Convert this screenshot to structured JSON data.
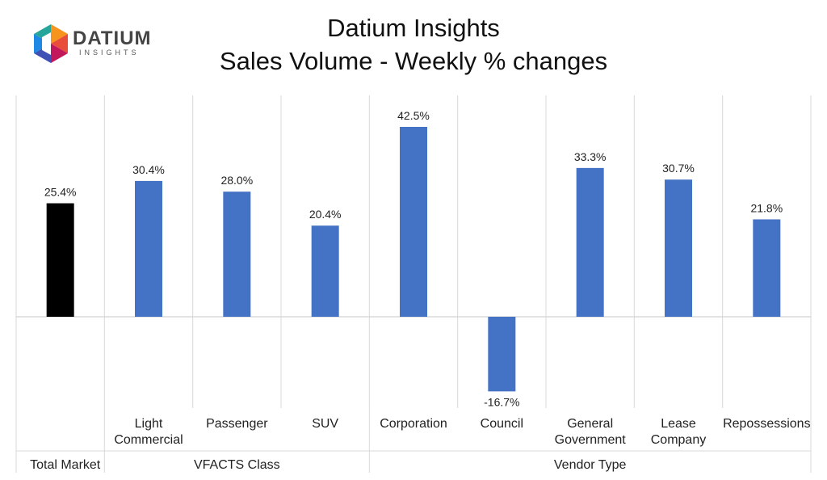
{
  "logo": {
    "name": "DATIUM",
    "tagline": "INSIGHTS"
  },
  "chart_data": {
    "type": "bar",
    "title": "Datium Insights",
    "subtitle": "Sales Volume - Weekly % changes",
    "categories": [
      "Total Market",
      "Light\nCommercial",
      "Passenger",
      "SUV",
      "Corporation",
      "Council",
      "General\nGovernment",
      "Lease\nCompany",
      "Repossessions"
    ],
    "groups": [
      {
        "label": "",
        "span": [
          0,
          0
        ]
      },
      {
        "label": "VFACTS Class",
        "span": [
          1,
          3
        ]
      },
      {
        "label": "Vendor Type",
        "span": [
          4,
          8
        ]
      }
    ],
    "group_label_total": "Total Market",
    "values": [
      25.4,
      30.4,
      28.0,
      20.4,
      42.5,
      -16.7,
      33.3,
      30.7,
      21.8
    ],
    "value_labels": [
      "25.4%",
      "30.4%",
      "28.0%",
      "20.4%",
      "42.5%",
      "-16.7%",
      "33.3%",
      "30.7%",
      "21.8%"
    ],
    "bar_colors": [
      "#000000",
      "#4472c4",
      "#4472c4",
      "#4472c4",
      "#4472c4",
      "#4472c4",
      "#4472c4",
      "#4472c4",
      "#4472c4"
    ],
    "ylim": [
      -25,
      50
    ],
    "grid": false,
    "legend": "none"
  }
}
